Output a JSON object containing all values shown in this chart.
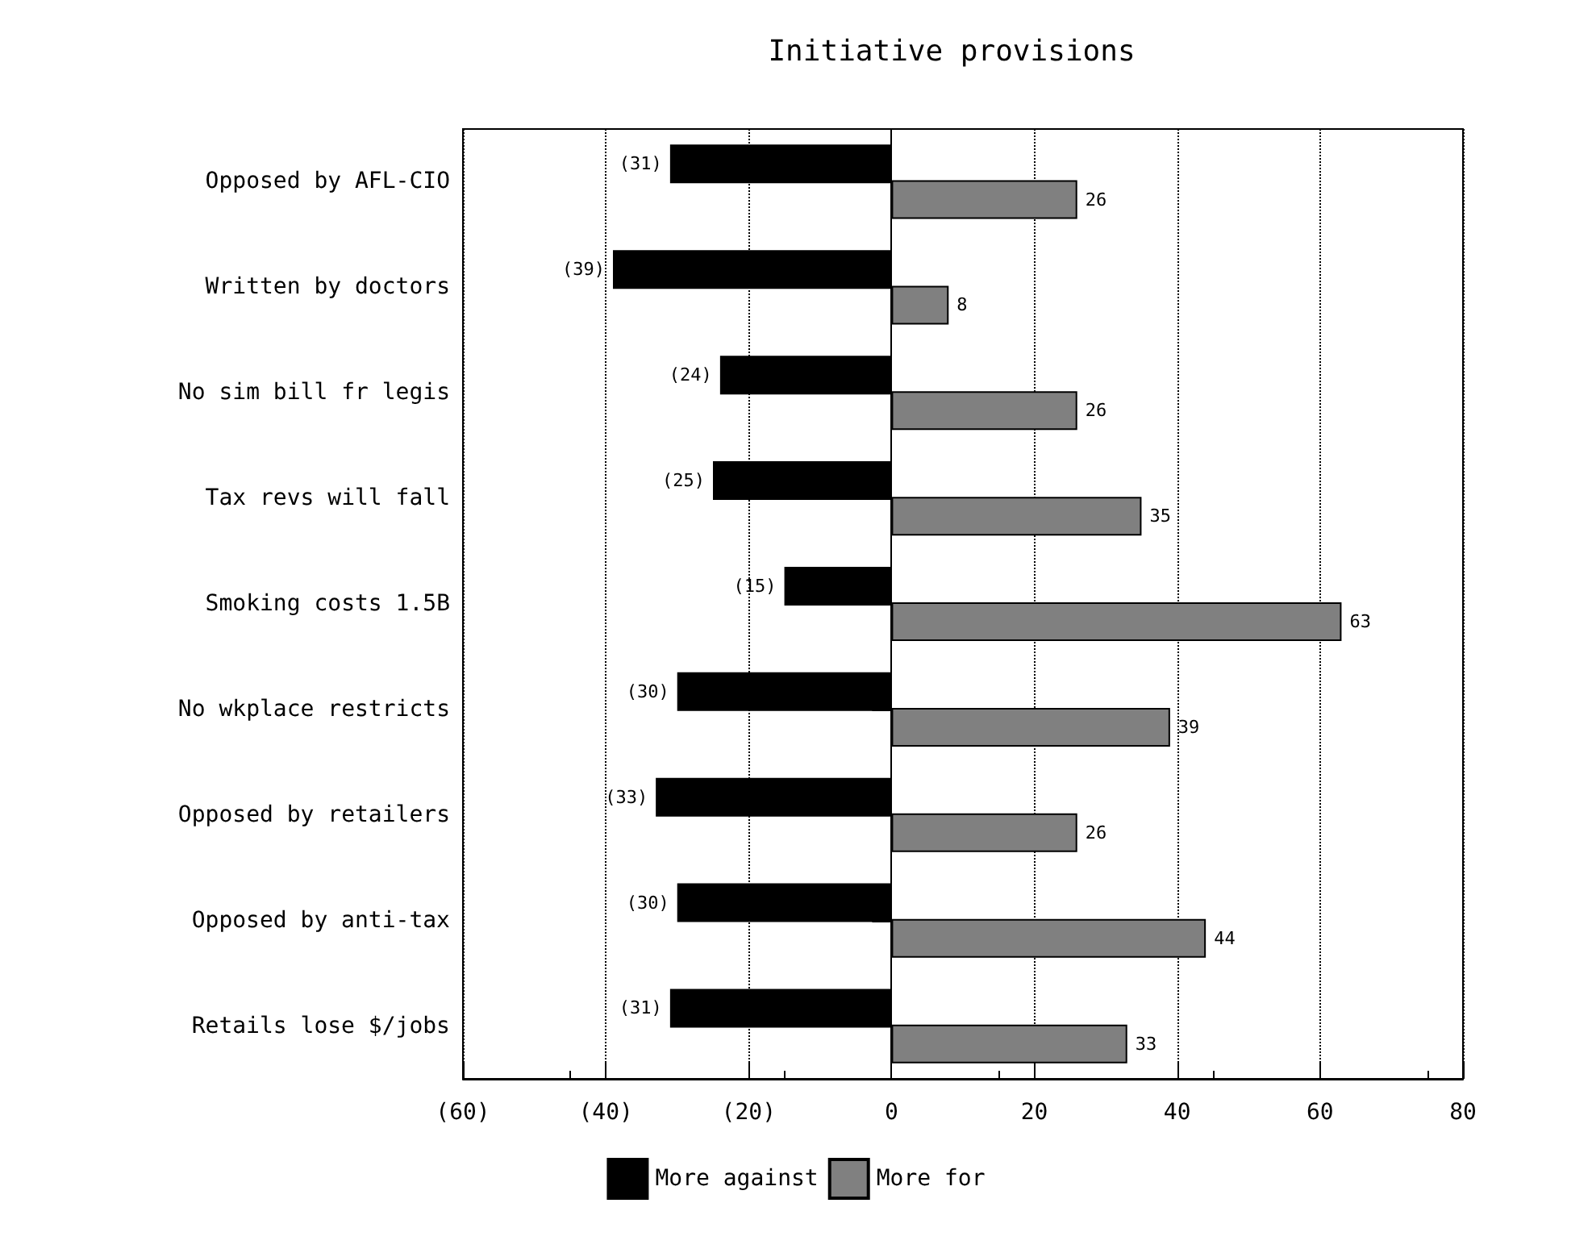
{
  "chart_data": {
    "type": "bar",
    "orientation": "horizontal",
    "title": "Initiative provisions",
    "categories": [
      "Opposed by AFL-CIO",
      "Written by doctors",
      "No sim bill fr legis",
      "Tax revs will fall",
      "Smoking costs 1.5B",
      "No wkplace restricts",
      "Opposed by retailers",
      "Opposed by anti-tax",
      "Retails lose $/jobs"
    ],
    "series": [
      {
        "name": "More against",
        "color": "#000000",
        "values": [
          -31,
          -39,
          -24,
          -25,
          -15,
          -30,
          -33,
          -30,
          -31
        ],
        "value_labels": [
          "(31)",
          "(39)",
          "(24)",
          "(25)",
          "(15)",
          "(30)",
          "(33)",
          "(30)",
          "(31)"
        ]
      },
      {
        "name": "More for",
        "color": "#808080",
        "values": [
          26,
          8,
          26,
          35,
          63,
          39,
          26,
          44,
          33
        ],
        "value_labels": [
          "26",
          "8",
          "26",
          "35",
          "63",
          "39",
          "26",
          "44",
          "33"
        ]
      }
    ],
    "xlim": [
      -60,
      80
    ],
    "xticks": [
      {
        "value": -60,
        "label": "(60)"
      },
      {
        "value": -40,
        "label": "(40)"
      },
      {
        "value": -20,
        "label": "(20)"
      },
      0,
      20,
      40,
      60,
      80
    ],
    "grid": "x",
    "legend": "bottom"
  }
}
